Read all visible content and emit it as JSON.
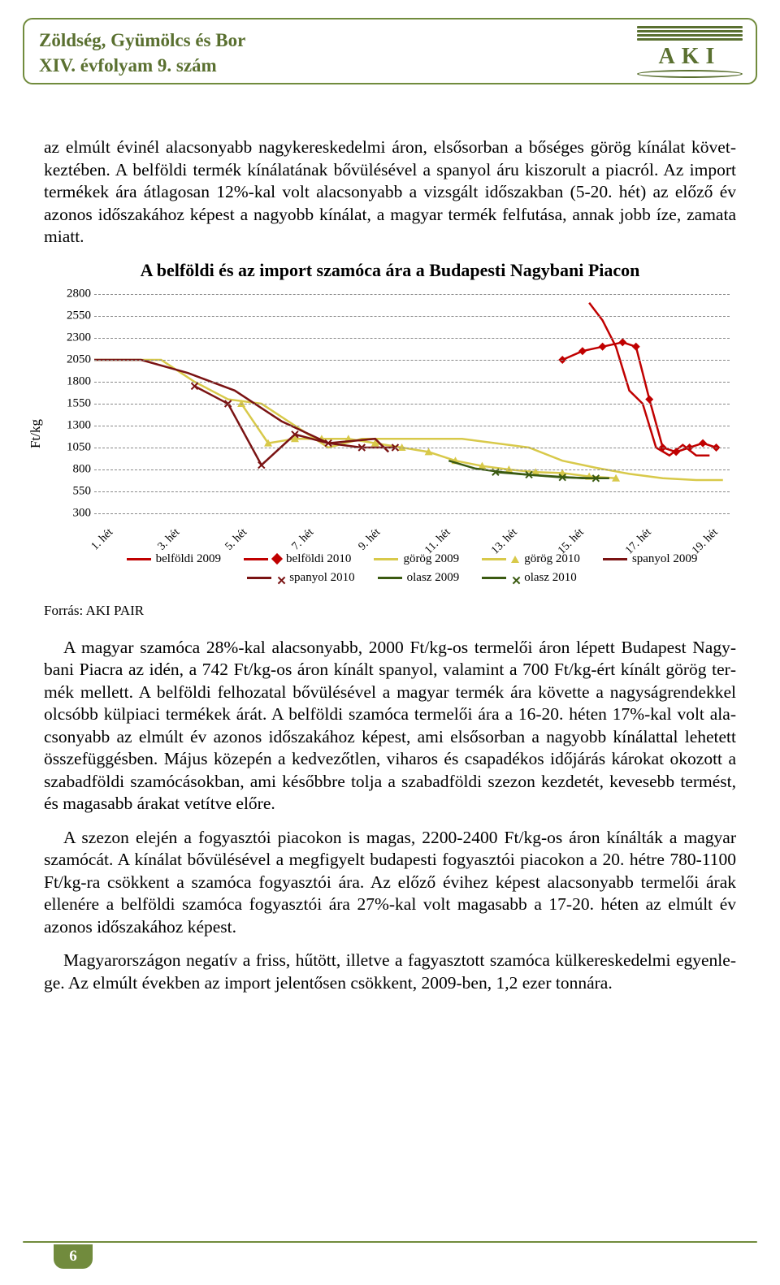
{
  "header": {
    "title": "Zöldség, Gyümölcs és Bor",
    "subtitle": "XIV. évfolyam 9. szám",
    "logo_text": "AKI"
  },
  "para1": "az elmúlt évinél alacsonyabb nagykereskedelmi áron, elsősorban a bőséges görög kínálat követ­keztében. A belföldi termék kínálatának bővülésével a spanyol áru kiszorult a piac­ról. Az import termékek ára átlagosan 12%-kal volt alacsonyabb a vizsgált időszakban (5-20. hét) az előző év azonos időszakához képest a nagyobb kínálat, a magyar termék felfutása, annak jobb íze, zamata miatt.",
  "chart": {
    "title": "A belföldi és az import szamóca ára a Budapesti Nagybani Piacon",
    "ylabel": "Ft/kg",
    "ylim": [
      300,
      2800
    ],
    "yticks": [
      300,
      550,
      800,
      1050,
      1300,
      1550,
      1800,
      2050,
      2300,
      2550,
      2800
    ],
    "xlabels": [
      "1. hét",
      "3. hét",
      "5. hét",
      "7. hét",
      "9. hét",
      "11. hét",
      "13. hét",
      "15. hét",
      "17. hét",
      "19. hét"
    ],
    "grid_color": "#888888",
    "series": [
      {
        "label": "belföldi 2009",
        "color": "#c00000",
        "marker": "none",
        "xi": [
          7.4,
          7.6,
          7.8,
          8.0,
          8.2,
          8.4,
          8.6,
          8.8,
          9.0,
          9.2
        ],
        "y": [
          2700,
          2500,
          2200,
          1700,
          1550,
          1050,
          960,
          1080,
          960,
          960
        ]
      },
      {
        "label": "belföldi 2010",
        "color": "#c00000",
        "marker": "diamond",
        "xi": [
          7.0,
          7.3,
          7.6,
          7.9,
          8.1,
          8.3,
          8.5,
          8.7,
          8.9,
          9.1,
          9.3
        ],
        "y": [
          2050,
          2150,
          2200,
          2250,
          2200,
          1600,
          1050,
          1000,
          1050,
          1100,
          1050
        ]
      },
      {
        "label": "görög 2009",
        "color": "#d8c94a",
        "marker": "none",
        "xi": [
          0,
          0.5,
          1,
          1.5,
          2,
          2.5,
          3,
          3.5,
          4,
          4.5,
          5,
          5.5,
          6,
          6.5,
          7,
          7.5,
          8,
          8.5,
          9,
          9.4
        ],
        "y": [
          2050,
          2050,
          2050,
          1800,
          1600,
          1550,
          1300,
          1050,
          1150,
          1150,
          1150,
          1150,
          1100,
          1050,
          900,
          820,
          750,
          700,
          680,
          680
        ]
      },
      {
        "label": "görög 2010",
        "color": "#d8c94a",
        "marker": "triangle",
        "xi": [
          2.2,
          2.6,
          3.0,
          3.4,
          3.8,
          4.2,
          4.6,
          5.0,
          5.4,
          5.8,
          6.2,
          6.6,
          7.0,
          7.4,
          7.8
        ],
        "y": [
          1550,
          1100,
          1150,
          1150,
          1150,
          1100,
          1050,
          1000,
          900,
          840,
          800,
          770,
          760,
          720,
          700
        ]
      },
      {
        "label": "spanyol 2009",
        "color": "#7a1313",
        "marker": "none",
        "xi": [
          0,
          0.7,
          1.4,
          2.1,
          2.8,
          3.5,
          4.2,
          4.4
        ],
        "y": [
          2050,
          2050,
          1900,
          1700,
          1350,
          1100,
          1150,
          1000
        ]
      },
      {
        "label": "spanyol 2010",
        "color": "#7a1313",
        "marker": "x",
        "xi": [
          1.5,
          2.0,
          2.5,
          3.0,
          3.5,
          4.0,
          4.5
        ],
        "y": [
          1750,
          1550,
          850,
          1200,
          1100,
          1050,
          1050
        ]
      },
      {
        "label": "olasz 2009",
        "color": "#3a5a11",
        "marker": "none",
        "xi": [
          5.3,
          5.7,
          6.1,
          6.5,
          6.9,
          7.3,
          7.7
        ],
        "y": [
          900,
          810,
          770,
          740,
          720,
          700,
          700
        ]
      },
      {
        "label": "olasz 2010",
        "color": "#3a5a11",
        "marker": "x",
        "xi": [
          6.0,
          6.5,
          7.0,
          7.5
        ],
        "y": [
          770,
          740,
          710,
          700
        ]
      }
    ],
    "source": "Forrás: AKI PAIR"
  },
  "para2": "A magyar szamóca 28%-kal alacsonyabb, 2000 Ft/kg-os termelői áron lépett Budapest Nagy­bani Piacra az idén, a 742 Ft/kg-os áron kínált spanyol, valamint a 700 Ft/kg-ért kínált görög ter­mék mellett. A belföldi felhozatal bővülésével a magyar termék ára követte a nagyságrendekkel olcsóbb külpiaci termékek árát. A belföldi szamóca termelői ára a 16-20. héten 17%-kal volt ala­csonyabb az elmúlt év azonos időszakához képest, ami elsősorban a nagyobb kínálattal lehetett összefüggésben. Május közepén a kedvezőtlen, viharos és csapadékos időjárás károkat okozott a szabadföldi szamócásokban, ami későbbre tolja a szabadföldi szezon kezdetét, kevesebb termést, és magasabb árakat vetítve előre.",
  "para3": "A szezon elején a fogyasztói piacokon is magas, 2200-2400 Ft/kg-os áron kínálták a magyar szamócát. A kínálat bővülésével a megfigyelt budapesti fogyasztói piacokon a 20. hétre 780-1100 Ft/kg-ra csökkent a szamóca fogyasztói ára. Az előző évihez képest alacsonyabb termelői árak ellenére a belföldi szamóca fogyasztói ára 27%-kal volt magasabb a 17-20. héten az elmúlt év azonos időszakához képest.",
  "para4": "Magyarországon negatív a friss, hűtött, illetve a fagyasztott szamóca külkereskedelmi egyenle­ge. Az elmúlt években az import jelentősen csökkent, 2009-ben, 1,2 ezer tonnára.",
  "page": "6"
}
